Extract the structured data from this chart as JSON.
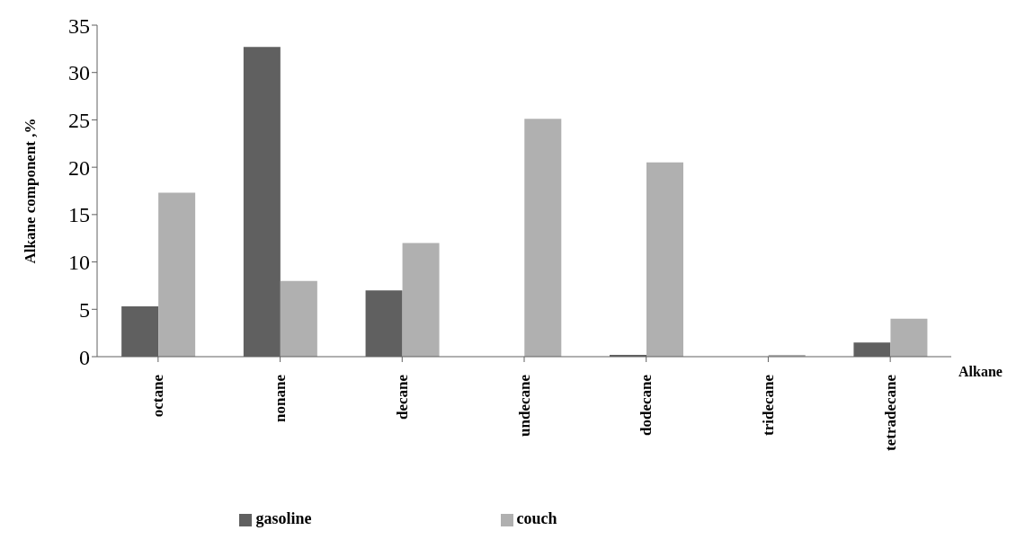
{
  "chart_data": {
    "type": "bar",
    "categories": [
      "octane",
      "nonane",
      "decane",
      "undecane",
      "dodecane",
      "tridecane",
      "tetradecane"
    ],
    "series": [
      {
        "name": "gasoline",
        "color": "#606060",
        "values": [
          5.3,
          32.7,
          7.0,
          0,
          0.2,
          0,
          1.5
        ]
      },
      {
        "name": "couch",
        "color": "#b0b0b0",
        "values": [
          17.3,
          8.0,
          12.0,
          25.1,
          20.5,
          0.2,
          4.0
        ]
      }
    ],
    "xlabel": "Alkane",
    "ylabel": "Alkane component ,%",
    "ylim": [
      0,
      35
    ],
    "yticks": [
      0,
      5,
      10,
      15,
      20,
      25,
      30,
      35
    ],
    "grid": false,
    "legend": "bottom"
  }
}
